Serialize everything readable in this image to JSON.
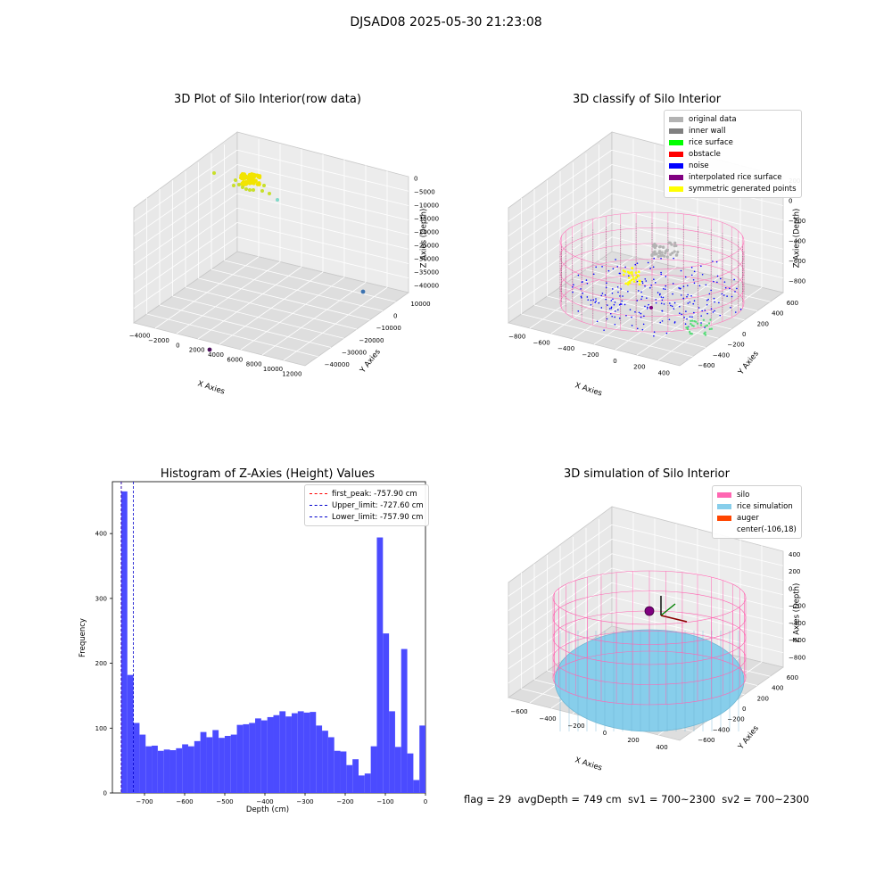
{
  "figure": {
    "title": "DJSAD08 2025-05-30 21:23:08"
  },
  "chart_data": [
    {
      "type": "scatter",
      "title": "3D Plot of Silo Interior(row data)",
      "xlabel": "X Axies",
      "ylabel": "Y Axies",
      "zlabel": "Z Axies (Depth)",
      "x_ticks": [
        "−4000",
        "−2000",
        "0",
        "2000",
        "4000",
        "6000",
        "8000",
        "10000",
        "12000"
      ],
      "y_ticks": [
        "−40000",
        "−30000",
        "−20000",
        "−10000",
        "0",
        "10000"
      ],
      "z_ticks": [
        "0",
        "−5000",
        "−10000",
        "−15000",
        "−20000",
        "−25000",
        "−30000",
        "−35000",
        "−40000"
      ],
      "grid": true,
      "colors": {
        "main_cluster": "#f2e400",
        "trail": "#c8df2a",
        "outlier_teal": "#7fd8c8",
        "outlier_blue": "#3b72b0",
        "outlier_purple": "#4b0f5a"
      }
    },
    {
      "type": "scatter",
      "title": "3D classify of Silo Interior",
      "xlabel": "X Axies",
      "ylabel": "Y Axies",
      "zlabel": "Z Axies (Depth)",
      "x_ticks": [
        "−800",
        "−600",
        "−400",
        "−200",
        "0",
        "200",
        "400"
      ],
      "y_ticks": [
        "−600",
        "−400",
        "−200",
        "0",
        "200",
        "400",
        "600"
      ],
      "z_ticks": [
        "200",
        "0",
        "−200",
        "−400",
        "−600",
        "−800"
      ],
      "grid": true,
      "legend_placement": "top-right",
      "legend": [
        {
          "label": "original data",
          "color": "#b3b3b3"
        },
        {
          "label": "inner wall",
          "color": "#808080"
        },
        {
          "label": "rice surface",
          "color": "#00ff00"
        },
        {
          "label": "obstacle",
          "color": "#ff0000"
        },
        {
          "label": "noise",
          "color": "#0000ff"
        },
        {
          "label": "interpolated rice surface",
          "color": "#800080"
        },
        {
          "label": "symmetric generated points",
          "color": "#ffff00"
        }
      ],
      "colors": {
        "silo_wire": "#ff77bb"
      }
    },
    {
      "type": "bar",
      "title": "Histogram of Z-Axies (Height) Values",
      "xlabel": "Depth (cm)",
      "ylabel": "Frequency",
      "xlim": [
        -780,
        0
      ],
      "ylim": [
        0,
        480
      ],
      "x_ticks": [
        -700,
        -600,
        -500,
        -400,
        -300,
        -200,
        -100,
        0
      ],
      "y_ticks": [
        0,
        100,
        200,
        300,
        400
      ],
      "bin_start": -757.9,
      "bin_width": 15.16,
      "values": [
        465,
        182,
        108,
        90,
        72,
        73,
        65,
        67,
        66,
        69,
        75,
        72,
        80,
        94,
        86,
        97,
        85,
        88,
        90,
        105,
        106,
        108,
        115,
        112,
        117,
        120,
        126,
        118,
        123,
        126,
        124,
        125,
        104,
        96,
        86,
        65,
        64,
        43,
        52,
        27,
        30,
        72,
        394,
        246,
        126,
        71,
        222,
        61,
        20,
        104
      ],
      "bar_color": "#4b4bff",
      "legend_placement": "top-right",
      "legend": [
        {
          "label": "first_peak: -757.90 cm",
          "color": "#ff0000",
          "value": -757.9
        },
        {
          "label": "Upper_limit: -727.60 cm",
          "color": "#0000cc",
          "value": -727.6
        },
        {
          "label": "Lower_limit: -757.90 cm",
          "color": "#0000cc",
          "value": -757.9
        }
      ]
    },
    {
      "type": "scatter",
      "title": "3D simulation of Silo Interior",
      "xlabel": "X Axies",
      "ylabel": "Y Axies",
      "zlabel": "Z Axies (Depth)",
      "x_ticks": [
        "−600",
        "−400",
        "−200",
        "0",
        "200",
        "400"
      ],
      "y_ticks": [
        "−600",
        "−400",
        "−200",
        "0",
        "200",
        "400",
        "600"
      ],
      "z_ticks": [
        "400",
        "200",
        "0",
        "−200",
        "−400",
        "−600",
        "−800"
      ],
      "grid": true,
      "legend_placement": "top-right",
      "legend": [
        {
          "label": "silo",
          "color": "#ff66b2"
        },
        {
          "label": "rice simulation",
          "color": "#87ceeb"
        },
        {
          "label": "auger",
          "color": "#ff4500"
        },
        {
          "label": "center(-106,18)",
          "color": ""
        }
      ]
    }
  ],
  "footer": {
    "text": "flag = 29  avgDepth = 749 cm  sv1 = 700~2300  sv2 = 700~2300"
  }
}
